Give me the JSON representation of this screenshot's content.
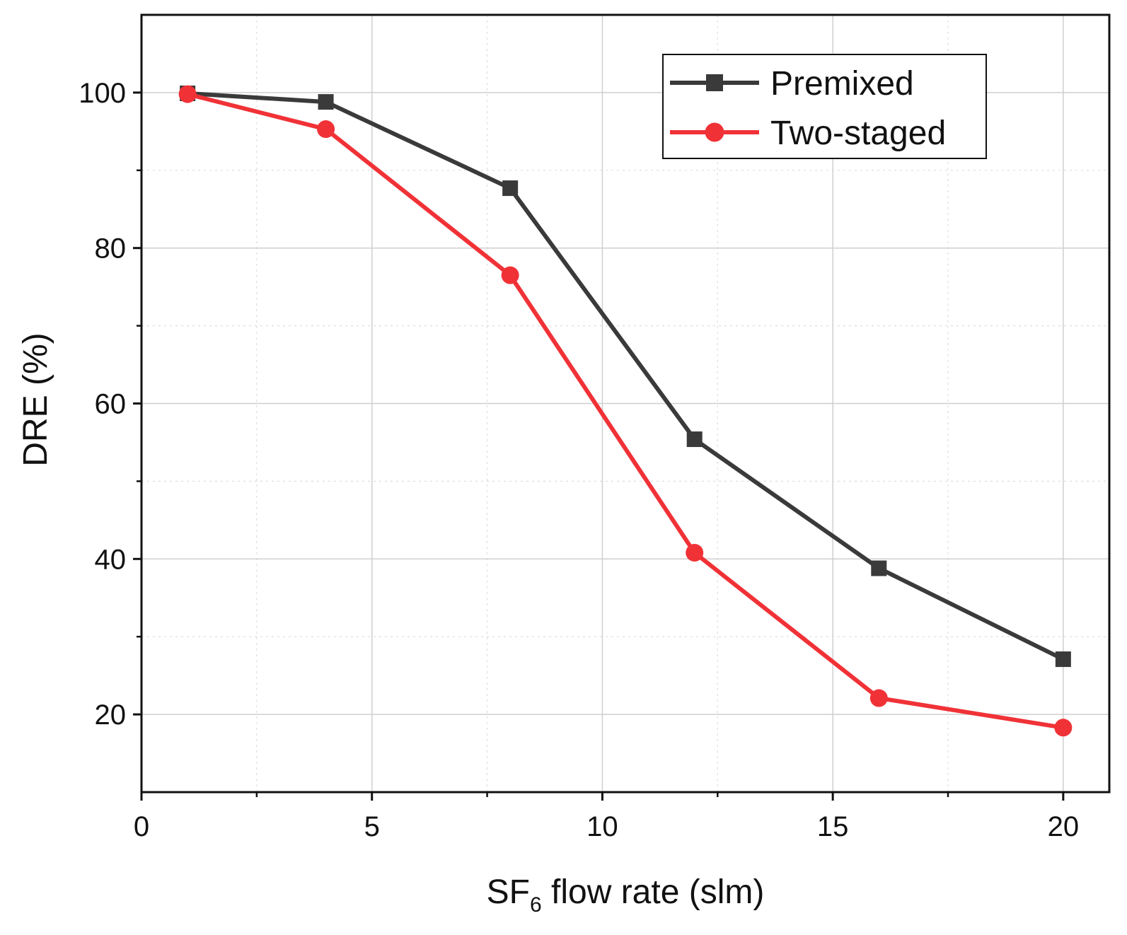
{
  "chart_data": {
    "type": "line",
    "title": "",
    "xlabel": {
      "prefix": "SF",
      "subscript": "6",
      "suffix": " flow rate (slm)"
    },
    "ylabel": "DRE (%)",
    "xlim": [
      0,
      21
    ],
    "ylim": [
      10,
      110
    ],
    "xticks": [
      0,
      5,
      10,
      15,
      20
    ],
    "xtick_labels": [
      "0",
      "5",
      "10",
      "15",
      "20"
    ],
    "xminor": [
      2.5,
      7.5,
      12.5,
      17.5
    ],
    "yticks": [
      20,
      40,
      60,
      80,
      100
    ],
    "ytick_labels": [
      "20",
      "40",
      "60",
      "80",
      "100"
    ],
    "yminor": [
      30,
      50,
      70,
      90
    ],
    "grid": true,
    "legend_position": "top-right",
    "series": [
      {
        "name": "Premixed",
        "color": "#3a3a3a",
        "marker": "square",
        "x": [
          1,
          4,
          8,
          12,
          16,
          20
        ],
        "y": [
          99.9,
          98.8,
          87.7,
          55.4,
          38.8,
          27.1
        ]
      },
      {
        "name": "Two-staged",
        "color": "#f03237",
        "marker": "circle",
        "x": [
          1,
          4,
          8,
          12,
          16,
          20
        ],
        "y": [
          99.8,
          95.3,
          76.5,
          40.8,
          22.1,
          18.3
        ]
      }
    ]
  }
}
